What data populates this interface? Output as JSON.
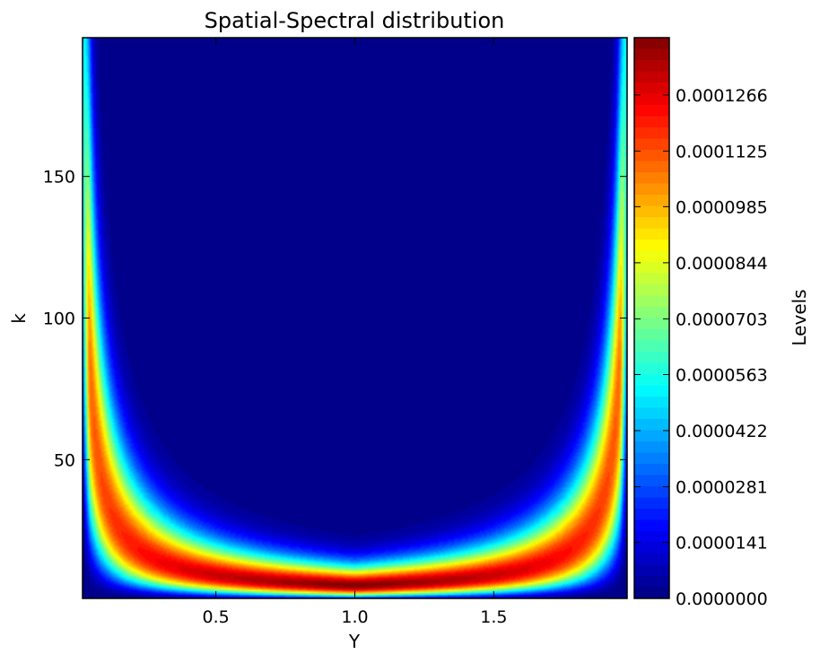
{
  "chart_data": {
    "type": "heatmap",
    "subtype": "filled-contour",
    "title": "Spatial-Spectral distribution",
    "xlabel": "Y",
    "ylabel": "k",
    "xlim": [
      0.02,
      1.98
    ],
    "ylim": [
      1,
      199
    ],
    "xticks": [
      0.5,
      1.0,
      1.5
    ],
    "xtick_labels": [
      "0.5",
      "1.0",
      "1.5"
    ],
    "yticks": [
      50,
      100,
      150
    ],
    "ytick_labels": [
      "50",
      "100",
      "150"
    ],
    "colormap": "jet",
    "colorbar": {
      "label": "Levels",
      "min": 0.0,
      "max": 0.000141,
      "ticks": [
        0.0,
        1.41e-05,
        2.81e-05,
        4.22e-05,
        5.63e-05,
        7.03e-05,
        8.44e-05,
        9.85e-05,
        0.0001125,
        0.0001266
      ],
      "tick_labels": [
        "0.0000000",
        "0.0000141",
        "0.0000281",
        "0.0000422",
        "0.0000563",
        "0.0000703",
        "0.0000844",
        "0.0000985",
        "0.0001125",
        "0.0001266"
      ],
      "n_levels": 50
    },
    "peak": {
      "x": 1.0,
      "y": 6,
      "value": 0.000141
    },
    "grid": false
  }
}
